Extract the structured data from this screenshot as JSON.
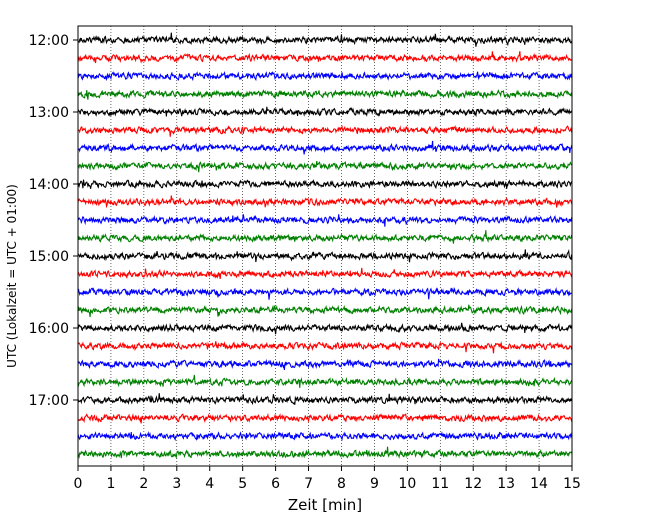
{
  "chart_data": {
    "type": "line",
    "title": "",
    "xlabel": "Zeit  [min]",
    "ylabel": "UTC (Lokalzeit = UTC + 01:00)",
    "xlim": [
      0,
      15
    ],
    "x_ticks": [
      "0",
      "1",
      "2",
      "3",
      "4",
      "5",
      "6",
      "7",
      "8",
      "9",
      "10",
      "11",
      "12",
      "13",
      "14",
      "15"
    ],
    "y_ticks": [
      "12:00",
      "13:00",
      "14:00",
      "15:00",
      "16:00",
      "17:00"
    ],
    "grid": "vertical dotted",
    "trace_interval_min": 15,
    "trace_count": 24,
    "trace_colors": [
      "#000000",
      "#ff0000",
      "#0000ff",
      "#008000"
    ],
    "amplitude_relative": 0.15,
    "traces": [
      {
        "start": "12:00",
        "color": "#000000"
      },
      {
        "start": "12:15",
        "color": "#ff0000"
      },
      {
        "start": "12:30",
        "color": "#0000ff"
      },
      {
        "start": "12:45",
        "color": "#008000"
      },
      {
        "start": "13:00",
        "color": "#000000"
      },
      {
        "start": "13:15",
        "color": "#ff0000"
      },
      {
        "start": "13:30",
        "color": "#0000ff"
      },
      {
        "start": "13:45",
        "color": "#008000"
      },
      {
        "start": "14:00",
        "color": "#000000"
      },
      {
        "start": "14:15",
        "color": "#ff0000"
      },
      {
        "start": "14:30",
        "color": "#0000ff"
      },
      {
        "start": "14:45",
        "color": "#008000"
      },
      {
        "start": "15:00",
        "color": "#000000"
      },
      {
        "start": "15:15",
        "color": "#ff0000"
      },
      {
        "start": "15:30",
        "color": "#0000ff"
      },
      {
        "start": "15:45",
        "color": "#008000"
      },
      {
        "start": "16:00",
        "color": "#000000"
      },
      {
        "start": "16:15",
        "color": "#ff0000"
      },
      {
        "start": "16:30",
        "color": "#0000ff"
      },
      {
        "start": "16:45",
        "color": "#008000"
      },
      {
        "start": "17:00",
        "color": "#000000"
      },
      {
        "start": "17:15",
        "color": "#ff0000"
      },
      {
        "start": "17:30",
        "color": "#0000ff"
      },
      {
        "start": "17:45",
        "color": "#008000"
      }
    ]
  }
}
